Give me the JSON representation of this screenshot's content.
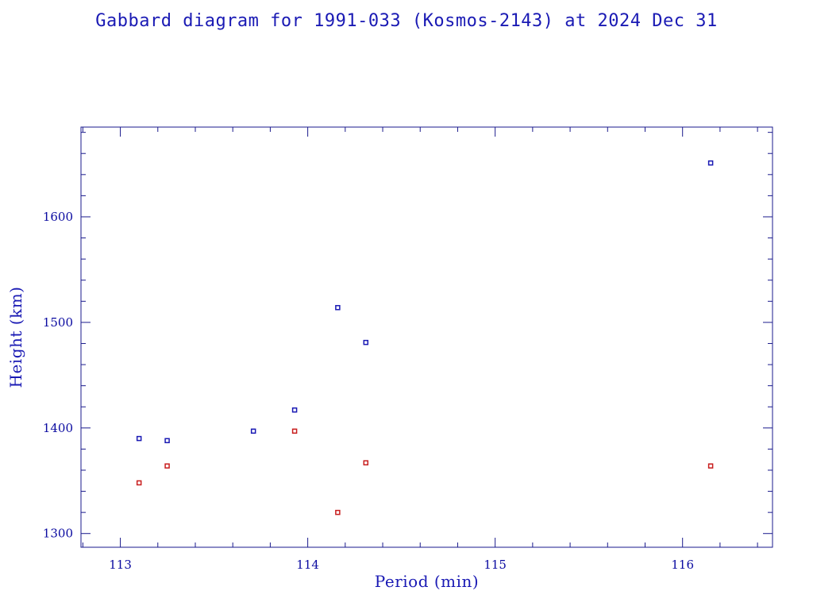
{
  "chart_data": {
    "type": "scatter",
    "title": "Gabbard diagram for 1991-033 (Kosmos-2143) at 2024 Dec 31",
    "xlabel": "Period (min)",
    "ylabel": "Height (km)",
    "xlim": [
      112.79,
      116.48
    ],
    "ylim": [
      1287,
      1685
    ],
    "x_ticks": [
      113,
      114,
      115,
      116
    ],
    "y_ticks": [
      1300,
      1400,
      1500,
      1600
    ],
    "grid": false,
    "series": [
      {
        "color": "#1a1ab4",
        "points": [
          {
            "x": 113.1,
            "y": 1390
          },
          {
            "x": 113.25,
            "y": 1388
          },
          {
            "x": 113.71,
            "y": 1397
          },
          {
            "x": 113.93,
            "y": 1417
          },
          {
            "x": 114.16,
            "y": 1514
          },
          {
            "x": 114.31,
            "y": 1481
          },
          {
            "x": 116.15,
            "y": 1651
          }
        ]
      },
      {
        "color": "#c81e1e",
        "points": [
          {
            "x": 113.1,
            "y": 1348
          },
          {
            "x": 113.25,
            "y": 1364
          },
          {
            "x": 113.93,
            "y": 1397
          },
          {
            "x": 114.16,
            "y": 1320
          },
          {
            "x": 114.31,
            "y": 1367
          },
          {
            "x": 116.15,
            "y": 1364
          }
        ]
      }
    ]
  }
}
